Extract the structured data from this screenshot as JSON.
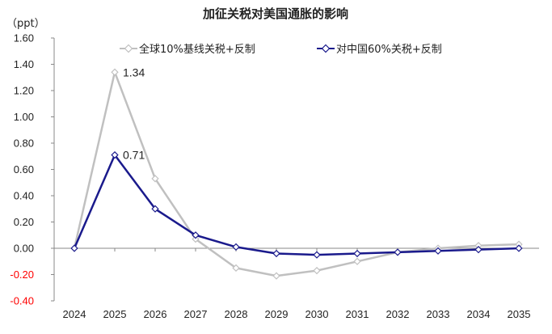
{
  "chart_data": {
    "type": "line",
    "title": "加征关税对美国通胀的影响",
    "unit_label": "（ppt）",
    "categories": [
      "2024",
      "2025",
      "2026",
      "2027",
      "2028",
      "2029",
      "2030",
      "2031",
      "2032",
      "2033",
      "2034",
      "2035"
    ],
    "ylim": [
      -0.4,
      1.6
    ],
    "yticks": [
      "1.60",
      "1.40",
      "1.20",
      "1.00",
      "0.80",
      "0.60",
      "0.40",
      "0.20",
      "0.00",
      "-0.20",
      "-0.40"
    ],
    "negative_tick_color": "#ff0000",
    "positive_tick_color": "#222222",
    "grid": false,
    "legend_position": "top",
    "series": [
      {
        "name": "全球10%基线关税+反制",
        "color": "#c0c0c0",
        "values": [
          0.0,
          1.34,
          0.53,
          0.07,
          -0.15,
          -0.21,
          -0.17,
          -0.1,
          -0.03,
          0.0,
          0.02,
          0.03
        ],
        "label_index": 1,
        "label_text": "1.34"
      },
      {
        "name": "对中国60%关税+反制",
        "color": "#1a1a8c",
        "values": [
          0.0,
          0.71,
          0.3,
          0.1,
          0.01,
          -0.04,
          -0.05,
          -0.04,
          -0.03,
          -0.02,
          -0.01,
          0.0
        ],
        "label_index": 1,
        "label_text": "0.71"
      }
    ]
  }
}
